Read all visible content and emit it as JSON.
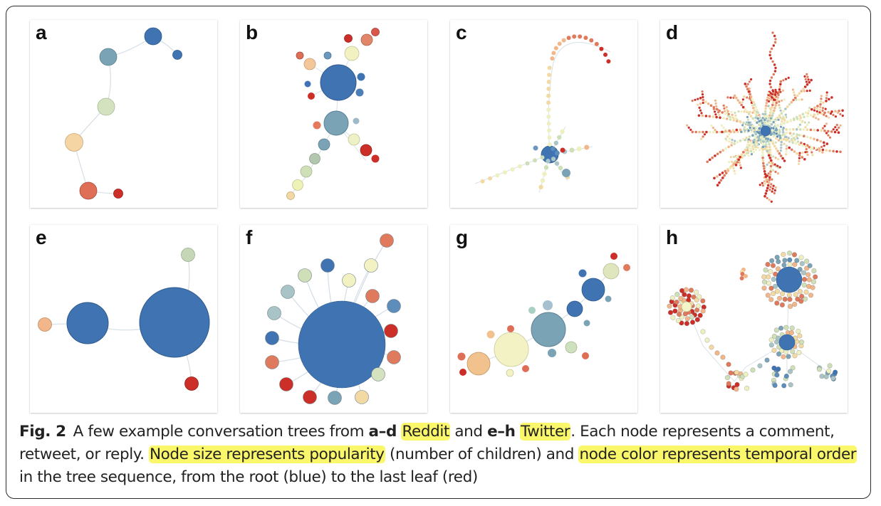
{
  "figure": {
    "panel_labels": [
      "a",
      "b",
      "c",
      "d",
      "e",
      "f",
      "g",
      "h"
    ],
    "caption": {
      "fig_label": "Fig. 2",
      "t1": "A few example conversation trees from ",
      "b1": "a",
      "dash1": "–",
      "b2": "d",
      "space1": " ",
      "hl_reddit": "Reddit",
      "t2": " and ",
      "b3": "e",
      "dash2": "–",
      "b4": "h",
      "space2": " ",
      "hl_twitter": "Twitter",
      "t3": ". Each node represents a comment, retweet, or reply. ",
      "hl_size": "Node size represents popularity",
      "t4": " (number of children) and ",
      "hl_color": "node color represents temporal order",
      "t5": " in the tree sequence, from the root (blue) to the last leaf (red)"
    },
    "colors": {
      "root_blue": "#3f73b2",
      "steel_blue": "#7aa3b6",
      "pale_green": "#cfdfb8",
      "pale_yellow": "#f3f2bf",
      "peach": "#f1c28d",
      "salmon": "#df7a5c",
      "red": "#cc2f28",
      "highlight": "#fbf76a"
    }
  }
}
